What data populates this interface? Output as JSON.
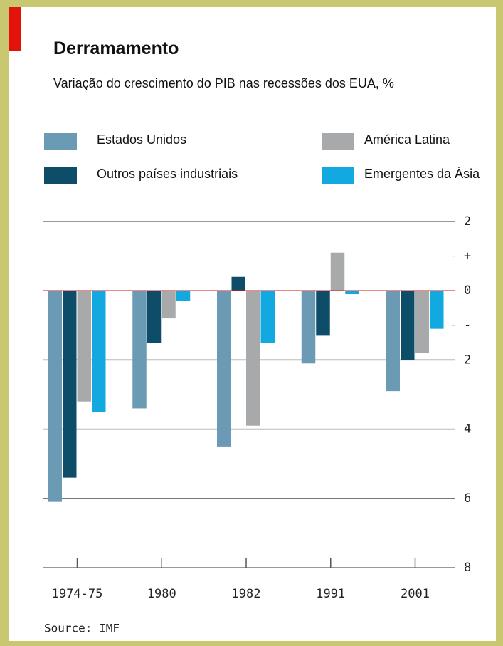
{
  "chart_data": {
    "type": "bar",
    "title": "Derramamento",
    "subtitle": "Variação do crescimento do PIB nas recessões dos EUA, %",
    "source": "Source: IMF",
    "categories": [
      "1974-75",
      "1980",
      "1982",
      "1991",
      "2001"
    ],
    "series": [
      {
        "name": "Estados Unidos",
        "color": "#6b9ab5",
        "values": [
          -6.1,
          -3.4,
          -4.5,
          -2.1,
          -2.9
        ]
      },
      {
        "name": "Outros países industriais",
        "color": "#0d4d68",
        "values": [
          -5.4,
          -1.5,
          0.4,
          -1.3,
          -2.0
        ]
      },
      {
        "name": "América Latina",
        "color": "#a8a9ab",
        "values": [
          -3.2,
          -0.8,
          -3.9,
          1.1,
          -1.8
        ]
      },
      {
        "name": "Emergentes da Ásia",
        "color": "#12a9e0",
        "values": [
          -3.5,
          -0.3,
          -1.5,
          -0.1,
          -1.1
        ]
      }
    ],
    "ylim": [
      -8,
      2
    ],
    "yticks": [
      2,
      {
        "value": 1,
        "label": "+"
      },
      0,
      {
        "value": -1,
        "label": "-"
      },
      {
        "value": -2,
        "label": "2"
      },
      {
        "value": -4,
        "label": "4"
      },
      {
        "value": -6,
        "label": "6"
      },
      {
        "value": -8,
        "label": "8"
      }
    ],
    "grid": true
  }
}
